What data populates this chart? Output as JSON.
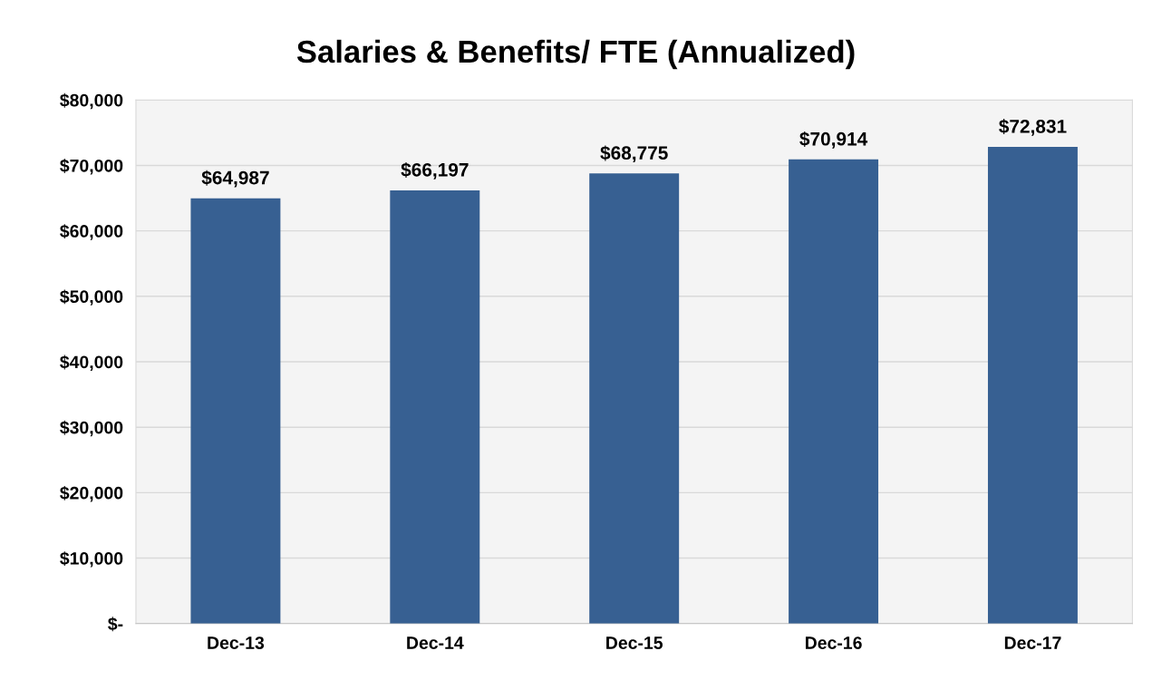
{
  "chart_data": {
    "type": "bar",
    "title": "Salaries & Benefits/ FTE (Annualized)",
    "categories": [
      "Dec-13",
      "Dec-14",
      "Dec-15",
      "Dec-16",
      "Dec-17"
    ],
    "values": [
      64987,
      66197,
      68775,
      70914,
      72831
    ],
    "value_labels": [
      "$64,987",
      "$66,197",
      "$68,775",
      "$70,914",
      "$72,831"
    ],
    "color": "#376092",
    "ylim": [
      0,
      80000
    ],
    "yticks": [
      {
        "value": 0,
        "label": "$-"
      },
      {
        "value": 10000,
        "label": "$10,000"
      },
      {
        "value": 20000,
        "label": "$20,000"
      },
      {
        "value": 30000,
        "label": "$30,000"
      },
      {
        "value": 40000,
        "label": "$40,000"
      },
      {
        "value": 50000,
        "label": "$50,000"
      },
      {
        "value": 60000,
        "label": "$60,000"
      },
      {
        "value": 70000,
        "label": "$70,000"
      },
      {
        "value": 80000,
        "label": "$80,000"
      }
    ],
    "grid": "y"
  }
}
